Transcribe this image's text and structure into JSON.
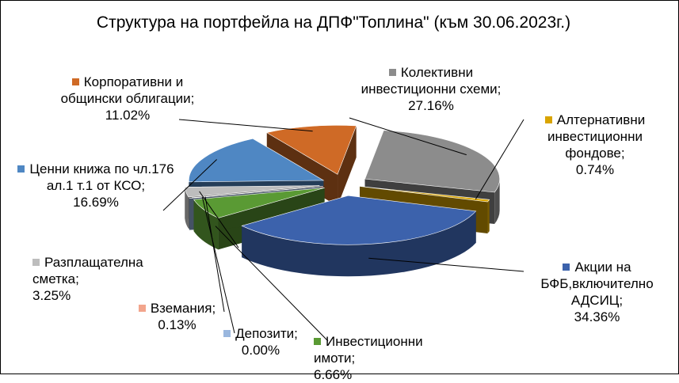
{
  "chart_data": {
    "type": "pie",
    "title": "Структура на портфейла на ДПФ\"Топлина\" (към 30.06.2023г.)",
    "slices": [
      {
        "name": "Колективни инвестиционни схеми",
        "value": 27.16,
        "label_name": "Колективни инвестиционни схеми;",
        "label_value": "27.16%",
        "color": "#8c8c8c"
      },
      {
        "name": "Алтернативни инвестиционни фондове",
        "value": 0.74,
        "label_name": "Алтернативни инвестиционни фондове;",
        "label_value": "0.74%",
        "color": "#d9a400"
      },
      {
        "name": "Акции на БФБ,включително АДСИЦ",
        "value": 34.36,
        "label_name": "Акции на БФБ,включително АДСИЦ;",
        "label_value": "34.36%",
        "color": "#3c62ac"
      },
      {
        "name": "Инвестиционни имоти",
        "value": 6.66,
        "label_name": "Инвестиционни имоти;",
        "label_value": "6.66%",
        "color": "#5a9a34"
      },
      {
        "name": "Депозити",
        "value": 0.0,
        "label_name": "Депозити;",
        "label_value": "0.00%",
        "color": "#9ab7de"
      },
      {
        "name": "Вземания",
        "value": 0.13,
        "label_name": "Вземания;",
        "label_value": "0.13%",
        "color": "#f2a58c"
      },
      {
        "name": "Разплащателна сметка",
        "value": 3.25,
        "label_name": "Разплащателна сметка;",
        "label_value": "3.25%",
        "color": "#bdbdbd"
      },
      {
        "name": "Ценни книжа по чл.176 ал.1 т.1 от КСО",
        "value": 16.69,
        "label_name": "Ценни книжа по чл.176 ал.1 т.1 от КСО;",
        "label_value": "16.69%",
        "color": "#4f87c3"
      },
      {
        "name": "Корпоративни и общински облигации",
        "value": 11.02,
        "label_name": "Корпоративни и общински облигации;",
        "label_value": "11.02%",
        "color": "#cf6a26"
      }
    ]
  }
}
